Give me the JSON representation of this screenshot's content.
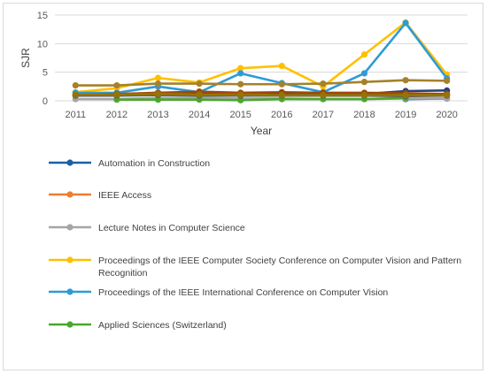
{
  "chart_data": {
    "type": "line",
    "title": "",
    "xlabel": "Year",
    "ylabel": "SJR",
    "categories": [
      "2011",
      "2012",
      "2013",
      "2014",
      "2015",
      "2016",
      "2017",
      "2018",
      "2019",
      "2020"
    ],
    "yticks": [
      "0",
      "5",
      "10",
      "15"
    ],
    "ylim": [
      0,
      15
    ],
    "grid": true,
    "legend_position": "bottom",
    "series": [
      {
        "name": "Automation in Construction",
        "color": "#1f5fa8",
        "values": [
          null,
          null,
          null,
          null,
          null,
          null,
          null,
          null,
          0.3,
          0.4
        ]
      },
      {
        "name": "IEEE Access",
        "color": "#ed7d31",
        "values": [
          null,
          null,
          null,
          null,
          null,
          null,
          null,
          null,
          null,
          null
        ]
      },
      {
        "name": "Lecture Notes in Computer Science",
        "color": "#a5a5a5",
        "values": [
          0.3,
          0.3,
          0.5,
          0.5,
          0.4,
          0.4,
          0.3,
          0.3,
          0.4,
          0.4
        ]
      },
      {
        "name": "Proceedings of the IEEE Computer Society Conference on Computer Vision and Pattern Recognition",
        "color": "#ffc000",
        "values": [
          1.5,
          2.2,
          4.0,
          3.2,
          5.7,
          6.1,
          2.5,
          8.1,
          13.7,
          4.6
        ]
      },
      {
        "name": "Proceedings of the IEEE International Conference on Computer Vision",
        "color": "#2e9bd6",
        "values": [
          1.4,
          1.4,
          2.5,
          1.5,
          4.8,
          3.1,
          1.5,
          4.8,
          13.6,
          3.9
        ]
      },
      {
        "name": "Applied Sciences (Switzerland)",
        "color": "#4aa72e",
        "values": [
          null,
          0.2,
          0.2,
          0.2,
          0.1,
          0.3,
          0.3,
          0.3,
          0.5,
          null
        ]
      },
      {
        "name": "",
        "color": "#a5812b",
        "values": [
          2.7,
          2.7,
          3.0,
          3.0,
          2.9,
          2.9,
          3.0,
          3.3,
          3.6,
          3.5
        ]
      },
      {
        "name": "",
        "color": "#264478",
        "values": [
          1.0,
          1.0,
          1.4,
          1.2,
          1.2,
          1.2,
          1.2,
          1.2,
          1.7,
          1.8
        ]
      },
      {
        "name": "",
        "color": "#9e480e",
        "values": [
          1.0,
          1.2,
          1.4,
          1.6,
          1.4,
          1.5,
          1.4,
          1.4,
          1.3,
          1.2
        ]
      },
      {
        "name": "",
        "color": "#636363",
        "values": [
          0.9,
          0.9,
          1.0,
          0.9,
          0.9,
          0.9,
          0.9,
          0.9,
          0.8,
          0.9
        ]
      },
      {
        "name": "",
        "color": "#997300",
        "values": [
          1.1,
          1.1,
          1.2,
          1.1,
          1.1,
          1.0,
          1.0,
          1.0,
          1.0,
          1.0
        ]
      }
    ]
  },
  "legend": [
    {
      "label": "Automation in Construction",
      "color": "#1f5fa8",
      "lines": [
        "Automation in Construction"
      ]
    },
    {
      "label": "IEEE Access",
      "color": "#ed7d31",
      "lines": [
        "IEEE Access"
      ]
    },
    {
      "label": "Lecture Notes in Computer Science",
      "color": "#a5a5a5",
      "lines": [
        "Lecture Notes in Computer Science"
      ]
    },
    {
      "label": "Proceedings of the IEEE Computer Society Conference on Computer Vision and Pattern Recognition",
      "color": "#ffc000",
      "lines": [
        "Proceedings of the IEEE Computer Society Conference on Computer Vision and Pattern",
        "Recognition"
      ]
    },
    {
      "label": "Proceedings of the IEEE International Conference on Computer Vision",
      "color": "#2e9bd6",
      "lines": [
        "Proceedings of the IEEE International Conference on Computer Vision"
      ]
    },
    {
      "label": "Applied Sciences (Switzerland)",
      "color": "#4aa72e",
      "lines": [
        "Applied Sciences (Switzerland)"
      ]
    }
  ]
}
